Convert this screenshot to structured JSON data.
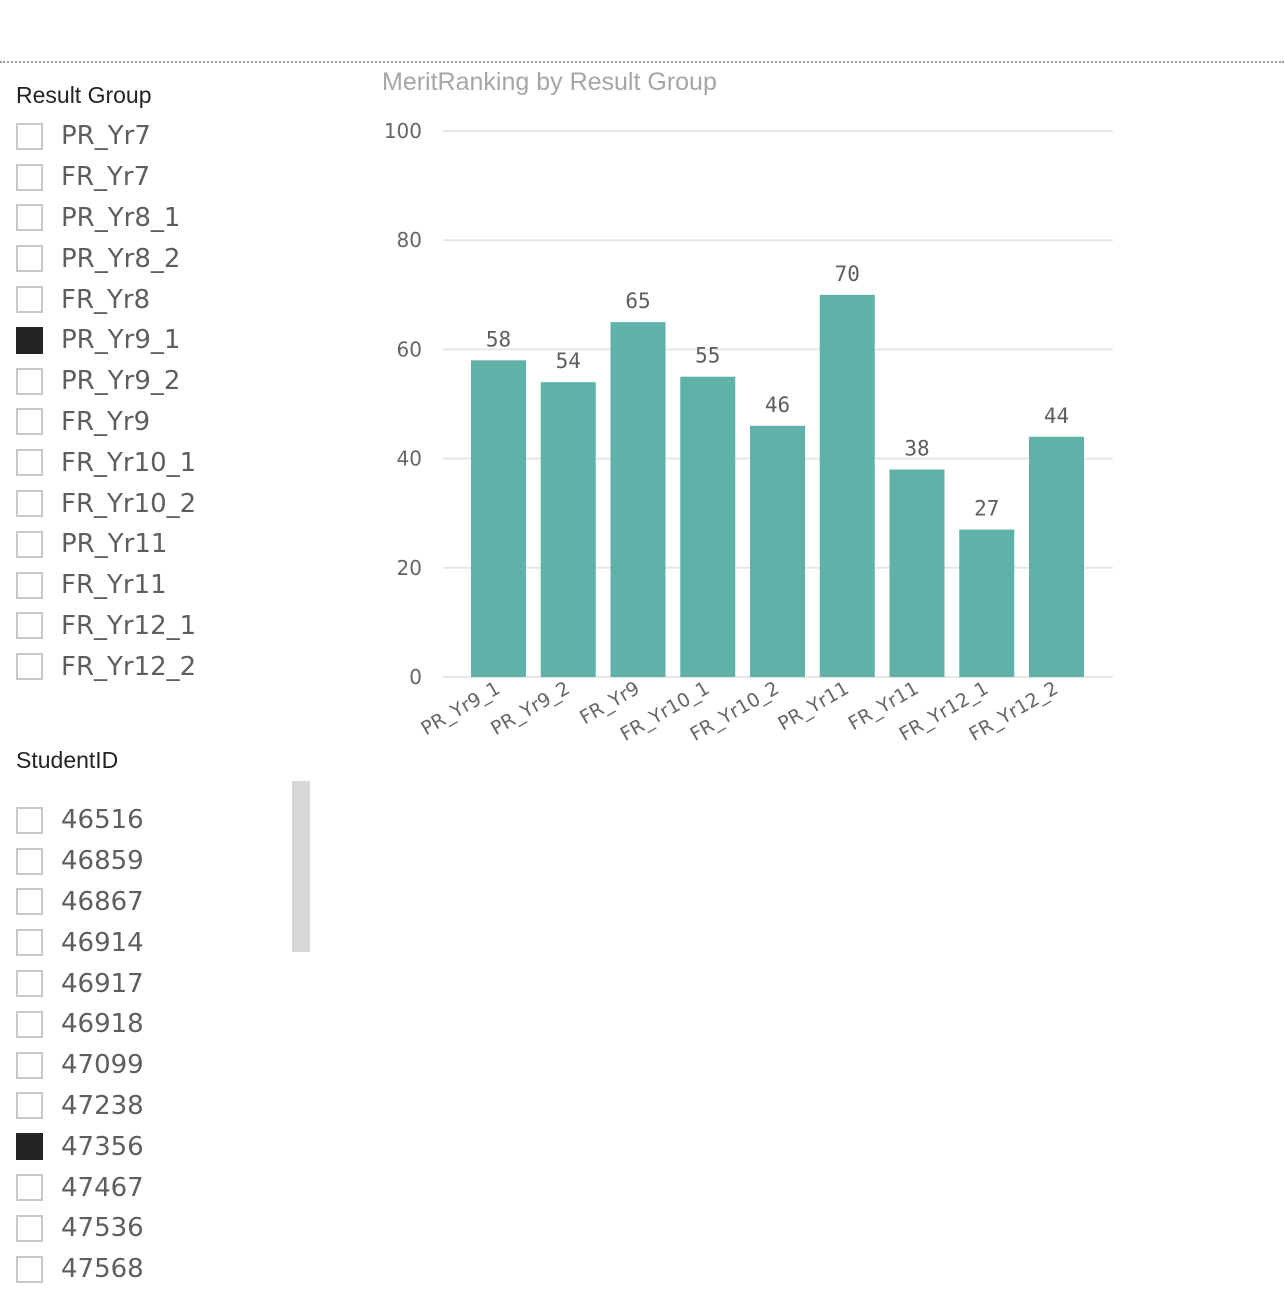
{
  "slicers": {
    "result_group": {
      "title": "Result Group",
      "items": [
        {
          "label": "PR_Yr7",
          "checked": false
        },
        {
          "label": "FR_Yr7",
          "checked": false
        },
        {
          "label": "PR_Yr8_1",
          "checked": false
        },
        {
          "label": "PR_Yr8_2",
          "checked": false
        },
        {
          "label": "FR_Yr8",
          "checked": false
        },
        {
          "label": "PR_Yr9_1",
          "checked": true
        },
        {
          "label": "PR_Yr9_2",
          "checked": false
        },
        {
          "label": "FR_Yr9",
          "checked": false
        },
        {
          "label": "FR_Yr10_1",
          "checked": false
        },
        {
          "label": "FR_Yr10_2",
          "checked": false
        },
        {
          "label": "PR_Yr11",
          "checked": false
        },
        {
          "label": "FR_Yr11",
          "checked": false
        },
        {
          "label": "FR_Yr12_1",
          "checked": false
        },
        {
          "label": "FR_Yr12_2",
          "checked": false
        }
      ]
    },
    "student_id": {
      "title": "StudentID",
      "items": [
        {
          "label": "46516",
          "checked": false
        },
        {
          "label": "46859",
          "checked": false
        },
        {
          "label": "46867",
          "checked": false
        },
        {
          "label": "46914",
          "checked": false
        },
        {
          "label": "46917",
          "checked": false
        },
        {
          "label": "46918",
          "checked": false
        },
        {
          "label": "47099",
          "checked": false
        },
        {
          "label": "47238",
          "checked": false
        },
        {
          "label": "47356",
          "checked": true
        },
        {
          "label": "47467",
          "checked": false
        },
        {
          "label": "47536",
          "checked": false
        },
        {
          "label": "47568",
          "checked": false
        }
      ]
    }
  },
  "chart_data": {
    "type": "bar",
    "title": "MeritRanking by Result Group",
    "xlabel": "",
    "ylabel": "",
    "categories": [
      "PR_Yr9_1",
      "PR_Yr9_2",
      "FR_Yr9",
      "FR_Yr10_1",
      "FR_Yr10_2",
      "PR_Yr11",
      "FR_Yr11",
      "FR_Yr12_1",
      "FR_Yr12_2"
    ],
    "values": [
      58,
      54,
      65,
      55,
      46,
      70,
      38,
      27,
      44
    ],
    "ylim": [
      0,
      100
    ],
    "yticks": [
      0,
      20,
      40,
      60,
      80,
      100
    ],
    "grid": true,
    "data_labels": true,
    "bar_color": "#60b2a8"
  }
}
